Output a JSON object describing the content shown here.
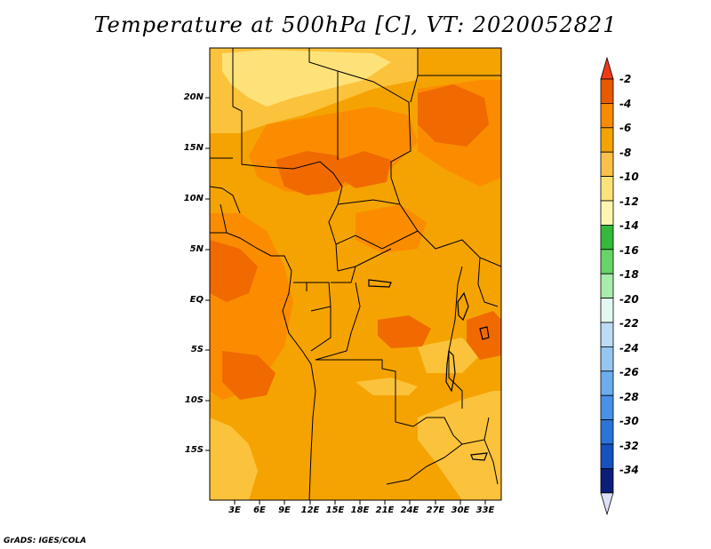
{
  "title": "Temperature at 500hPa [C], VT: 2020052821",
  "credit": "GrADS: IGES/COLA",
  "map": {
    "lat_labels": [
      "20N",
      "15N",
      "10N",
      "5N",
      "EQ",
      "5S",
      "10S",
      "15S"
    ],
    "lon_labels": [
      "3E",
      "6E",
      "9E",
      "12E",
      "15E",
      "18E",
      "21E",
      "24E",
      "27E",
      "30E",
      "33E"
    ],
    "region_colors": {
      "base": "#f5a300",
      "warm": "#fb8c00",
      "hot": "#f06a00",
      "cool": "#fbc23b",
      "coolest": "#fde27a"
    }
  },
  "colorbar": {
    "labels": [
      "-2",
      "-4",
      "-6",
      "-8",
      "-10",
      "-12",
      "-14",
      "-16",
      "-18",
      "-20",
      "-22",
      "-24",
      "-26",
      "-28",
      "-30",
      "-32",
      "-34"
    ],
    "colors": [
      "#e85a00",
      "#f88b00",
      "#f4a300",
      "#f9c04a",
      "#fde27a",
      "#fef6b0",
      "#35b93a",
      "#66d466",
      "#a6ecaa",
      "#e2f8f0",
      "#bcdcf6",
      "#95c6f2",
      "#6cadee",
      "#4792e6",
      "#2a74d8",
      "#1652be",
      "#0a1f7a"
    ],
    "top_arrow_color": "#ee3a16",
    "bottom_arrow_color": "#dde0f6"
  }
}
